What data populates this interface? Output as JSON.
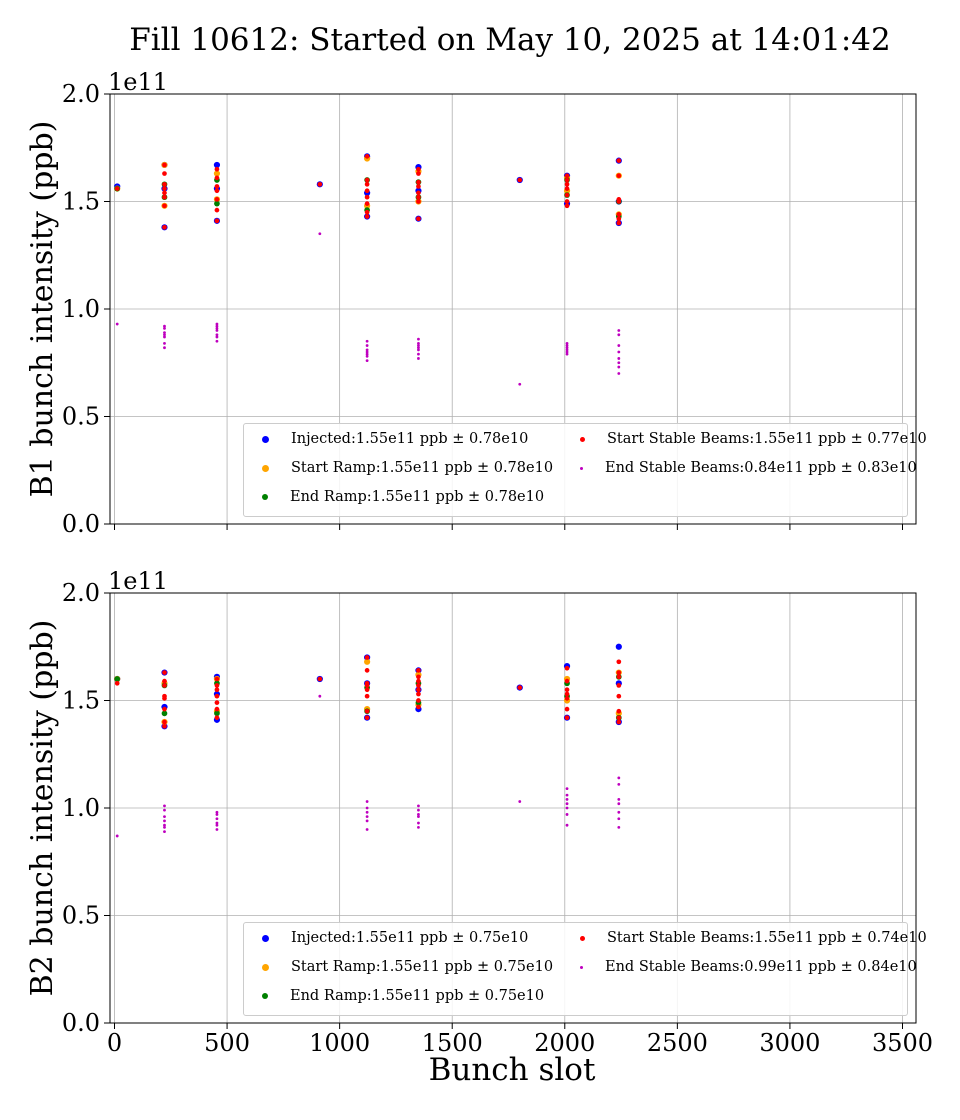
{
  "title": "Fill 10612: Started on May 10, 2025 at 14:01:42",
  "xlabel": "Bunch slot",
  "chart_data": [
    {
      "type": "scatter",
      "ylabel": "B1 bunch intensity (ppb)",
      "offset_label": "1e11",
      "xlim": [
        -20,
        3560
      ],
      "ylim": [
        0,
        2.0
      ],
      "xticks": [
        0,
        500,
        1000,
        1500,
        2000,
        2500,
        3000,
        3500
      ],
      "xtick_labels": [
        "",
        "",
        "",
        "",
        "",
        "",
        "",
        ""
      ],
      "yticks": [
        0.0,
        0.5,
        1.0,
        1.5,
        2.0
      ],
      "ytick_labels": [
        "0.0",
        "0.5",
        "1.0",
        "1.5",
        "2.0"
      ],
      "grid": true,
      "legend_location": "lower right",
      "series": [
        {
          "name": "Injected:1.55e11 ppb ± 0.78e10",
          "color": "#0000ff",
          "marker_size": 5,
          "x": [
            12,
            222,
            222,
            222,
            455,
            455,
            455,
            912,
            1122,
            1122,
            1122,
            1350,
            1350,
            1350,
            1800,
            2010,
            2010,
            2240,
            2240,
            2240
          ],
          "y": [
            1.57,
            1.38,
            1.56,
            1.67,
            1.41,
            1.56,
            1.67,
            1.58,
            1.43,
            1.54,
            1.71,
            1.42,
            1.55,
            1.66,
            1.6,
            1.49,
            1.62,
            1.4,
            1.5,
            1.69
          ]
        },
        {
          "name": "Start Ramp:1.55e11 ppb ± 0.78e10",
          "color": "#ffa500",
          "marker_size": 5,
          "x": [
            12,
            222,
            222,
            455,
            455,
            1122,
            1122,
            1350,
            1350,
            2010,
            2010,
            2240,
            2240
          ],
          "y": [
            1.56,
            1.48,
            1.67,
            1.51,
            1.63,
            1.48,
            1.7,
            1.5,
            1.64,
            1.55,
            1.61,
            1.44,
            1.62
          ]
        },
        {
          "name": "End Ramp:1.55e11 ppb ± 0.78e10",
          "color": "#008000",
          "marker_size": 4.5,
          "x": [
            12,
            222,
            222,
            455,
            455,
            1122,
            1122,
            1350,
            1350,
            2010,
            2010,
            2240,
            2240
          ],
          "y": [
            1.56,
            1.52,
            1.58,
            1.49,
            1.6,
            1.46,
            1.6,
            1.52,
            1.59,
            1.53,
            1.6,
            1.43,
            1.5
          ]
        },
        {
          "name": "Start Stable Beams:1.55e11 ppb ± 0.77e10",
          "color": "#ff0000",
          "marker_size": 3.5,
          "x": [
            12,
            222,
            222,
            222,
            222,
            222,
            222,
            222,
            222,
            455,
            455,
            455,
            455,
            455,
            455,
            455,
            912,
            1122,
            1122,
            1122,
            1122,
            1122,
            1122,
            1122,
            1122,
            1350,
            1350,
            1350,
            1350,
            1350,
            1350,
            1350,
            1350,
            1800,
            2010,
            2010,
            2010,
            2010,
            2010,
            2010,
            2010,
            2240,
            2240,
            2240,
            2240,
            2240,
            2240,
            2240
          ],
          "y": [
            1.56,
            1.38,
            1.48,
            1.52,
            1.54,
            1.56,
            1.58,
            1.63,
            1.67,
            1.41,
            1.46,
            1.51,
            1.55,
            1.57,
            1.61,
            1.65,
            1.58,
            1.43,
            1.45,
            1.49,
            1.52,
            1.55,
            1.58,
            1.6,
            1.71,
            1.42,
            1.5,
            1.52,
            1.54,
            1.57,
            1.59,
            1.63,
            1.65,
            1.6,
            1.48,
            1.5,
            1.53,
            1.56,
            1.58,
            1.6,
            1.62,
            1.4,
            1.42,
            1.44,
            1.5,
            1.51,
            1.62,
            1.69
          ]
        },
        {
          "name": "End Stable Beams:0.84e11 ppb ± 0.83e10",
          "color": "#bf00bf",
          "marker_size": 1.6,
          "x": [
            12,
            222,
            222,
            222,
            222,
            222,
            222,
            222,
            455,
            455,
            455,
            455,
            455,
            455,
            455,
            912,
            1122,
            1122,
            1122,
            1122,
            1122,
            1122,
            1122,
            1350,
            1350,
            1350,
            1350,
            1350,
            1350,
            1350,
            1800,
            2010,
            2010,
            2010,
            2010,
            2010,
            2010,
            2240,
            2240,
            2240,
            2240,
            2240,
            2240,
            2240,
            2240
          ],
          "y": [
            0.93,
            0.82,
            0.84,
            0.87,
            0.88,
            0.89,
            0.91,
            0.92,
            0.85,
            0.87,
            0.88,
            0.9,
            0.91,
            0.92,
            0.93,
            1.35,
            0.76,
            0.78,
            0.79,
            0.8,
            0.81,
            0.83,
            0.85,
            0.77,
            0.79,
            0.81,
            0.82,
            0.83,
            0.84,
            0.86,
            0.65,
            0.79,
            0.8,
            0.81,
            0.82,
            0.83,
            0.84,
            0.7,
            0.73,
            0.75,
            0.77,
            0.8,
            0.83,
            0.88,
            0.9
          ]
        }
      ]
    },
    {
      "type": "scatter",
      "ylabel": "B2 bunch intensity (ppb)",
      "offset_label": "1e11",
      "xlim": [
        -20,
        3560
      ],
      "ylim": [
        0,
        2.0
      ],
      "xticks": [
        0,
        500,
        1000,
        1500,
        2000,
        2500,
        3000,
        3500
      ],
      "xtick_labels": [
        "0",
        "500",
        "1000",
        "1500",
        "2000",
        "2500",
        "3000",
        "3500"
      ],
      "yticks": [
        0.0,
        0.5,
        1.0,
        1.5,
        2.0
      ],
      "ytick_labels": [
        "0.0",
        "0.5",
        "1.0",
        "1.5",
        "2.0"
      ],
      "grid": true,
      "legend_location": "lower right",
      "series": [
        {
          "name": "Injected:1.55e11 ppb ± 0.75e10",
          "color": "#0000ff",
          "marker_size": 5,
          "x": [
            12,
            222,
            222,
            222,
            455,
            455,
            455,
            912,
            1122,
            1122,
            1122,
            1350,
            1350,
            1350,
            1800,
            2010,
            2010,
            2240,
            2240,
            2240
          ],
          "y": [
            1.6,
            1.38,
            1.47,
            1.63,
            1.41,
            1.53,
            1.61,
            1.6,
            1.42,
            1.58,
            1.7,
            1.46,
            1.55,
            1.64,
            1.56,
            1.42,
            1.66,
            1.4,
            1.58,
            1.75
          ]
        },
        {
          "name": "Start Ramp:1.55e11 ppb ± 0.75e10",
          "color": "#ffa500",
          "marker_size": 5,
          "x": [
            12,
            222,
            222,
            455,
            455,
            1122,
            1122,
            1350,
            1350,
            2010,
            2010,
            2240,
            2240
          ],
          "y": [
            1.6,
            1.4,
            1.58,
            1.45,
            1.6,
            1.46,
            1.68,
            1.48,
            1.62,
            1.5,
            1.6,
            1.44,
            1.63
          ]
        },
        {
          "name": "End Ramp:1.55e11 ppb ± 0.75e10",
          "color": "#008000",
          "marker_size": 4.5,
          "x": [
            12,
            222,
            222,
            455,
            455,
            1122,
            1122,
            1350,
            1350,
            2010,
            2010,
            2240,
            2240
          ],
          "y": [
            1.6,
            1.44,
            1.57,
            1.44,
            1.58,
            1.45,
            1.56,
            1.49,
            1.58,
            1.52,
            1.58,
            1.42,
            1.61
          ]
        },
        {
          "name": "Start Stable Beams:1.55e11 ppb ± 0.74e10",
          "color": "#ff0000",
          "marker_size": 3.5,
          "x": [
            12,
            222,
            222,
            222,
            222,
            222,
            222,
            222,
            222,
            455,
            455,
            455,
            455,
            455,
            455,
            455,
            912,
            1122,
            1122,
            1122,
            1122,
            1122,
            1122,
            1122,
            1122,
            1350,
            1350,
            1350,
            1350,
            1350,
            1350,
            1350,
            1350,
            1800,
            2010,
            2010,
            2010,
            2010,
            2010,
            2010,
            2010,
            2240,
            2240,
            2240,
            2240,
            2240,
            2240,
            2240,
            2240
          ],
          "y": [
            1.58,
            1.38,
            1.4,
            1.46,
            1.51,
            1.52,
            1.57,
            1.59,
            1.63,
            1.42,
            1.46,
            1.49,
            1.52,
            1.55,
            1.57,
            1.6,
            1.6,
            1.42,
            1.45,
            1.52,
            1.55,
            1.57,
            1.58,
            1.64,
            1.7,
            1.47,
            1.5,
            1.53,
            1.55,
            1.57,
            1.59,
            1.61,
            1.64,
            1.56,
            1.42,
            1.46,
            1.51,
            1.53,
            1.55,
            1.59,
            1.65,
            1.4,
            1.42,
            1.45,
            1.52,
            1.57,
            1.61,
            1.63,
            1.68
          ]
        },
        {
          "name": "End Stable Beams:0.99e11 ppb ± 0.84e10",
          "color": "#bf00bf",
          "marker_size": 1.6,
          "x": [
            12,
            222,
            222,
            222,
            222,
            222,
            222,
            222,
            455,
            455,
            455,
            455,
            455,
            455,
            912,
            1122,
            1122,
            1122,
            1122,
            1122,
            1122,
            1350,
            1350,
            1350,
            1350,
            1350,
            1350,
            1800,
            2010,
            2010,
            2010,
            2010,
            2010,
            2010,
            2010,
            2240,
            2240,
            2240,
            2240,
            2240,
            2240,
            2240
          ],
          "y": [
            0.87,
            0.89,
            0.91,
            0.92,
            0.94,
            0.96,
            0.99,
            1.01,
            0.9,
            0.92,
            0.93,
            0.95,
            0.97,
            0.98,
            1.52,
            0.9,
            0.94,
            0.96,
            0.98,
            1.0,
            1.03,
            0.91,
            0.93,
            0.96,
            0.97,
            0.99,
            1.01,
            1.03,
            0.92,
            0.97,
            1.0,
            1.02,
            1.04,
            1.06,
            1.09,
            0.91,
            0.95,
            0.98,
            1.02,
            1.04,
            1.11,
            1.14
          ]
        }
      ]
    }
  ]
}
